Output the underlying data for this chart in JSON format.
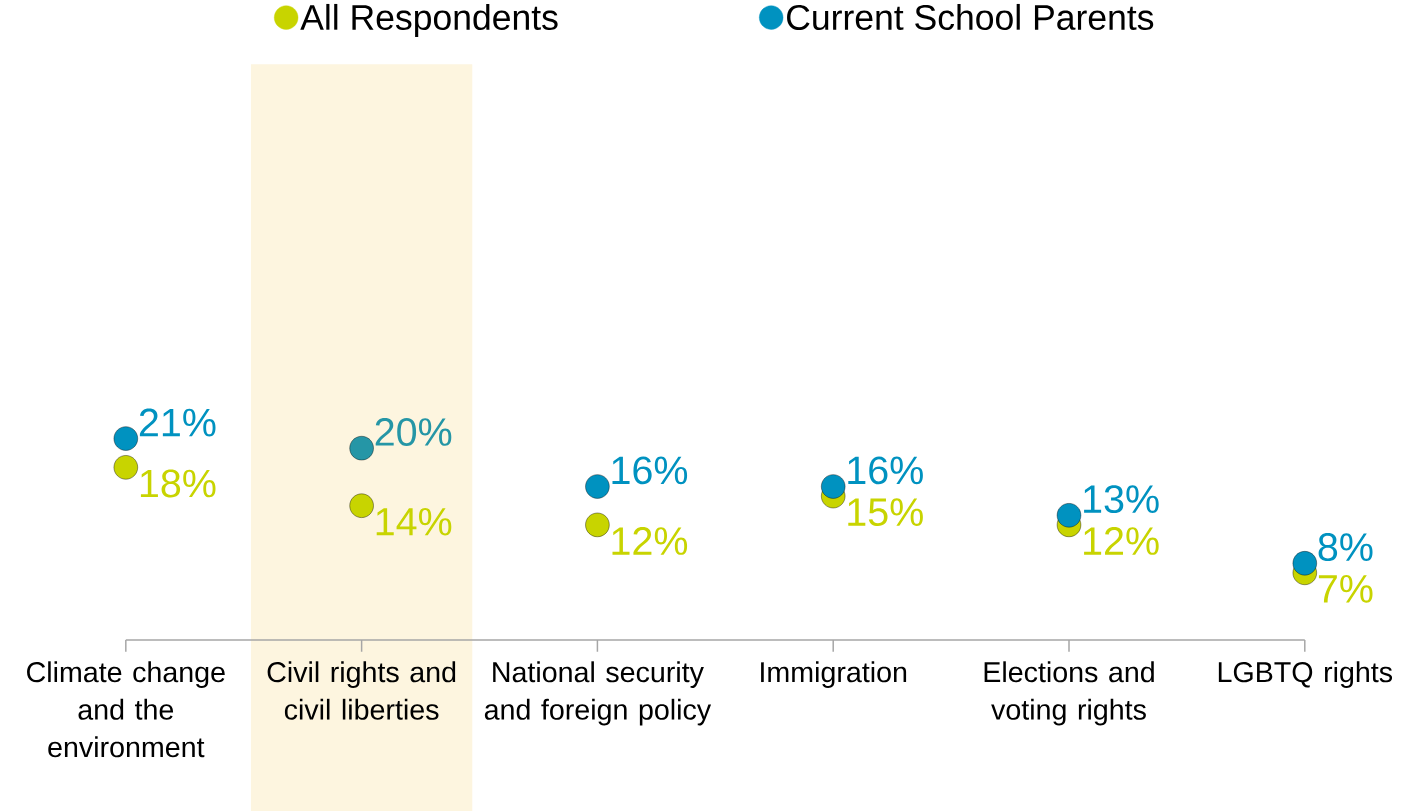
{
  "chart_data": {
    "type": "scatter",
    "categories": [
      "Climate change and the environment",
      "Civil rights and civil liberties",
      "National security and foreign policy",
      "Immigration",
      "Elections and voting rights",
      "LGBTQ rights"
    ],
    "series": [
      {
        "name": "All Respondents",
        "color": "#c8d400",
        "values": [
          18,
          14,
          12,
          15,
          12,
          7
        ],
        "value_labels": [
          "18%",
          "14%",
          "12%",
          "15%",
          "12%",
          "7%"
        ]
      },
      {
        "name": "Current School Parents",
        "color": "#0092c0",
        "colors": [
          "#0092c0",
          "#2596a6",
          "#0092c0",
          "#0092c0",
          "#0092c0",
          "#0092c0"
        ],
        "values": [
          21,
          20,
          16,
          16,
          13,
          8
        ],
        "value_labels": [
          "21%",
          "20%",
          "16%",
          "16%",
          "13%",
          "8%"
        ]
      }
    ],
    "bands": [
      {
        "axis": "x",
        "from": "Civil rights and civil liberties",
        "to": "Civil rights and civil liberties",
        "color": "#fdf5df"
      }
    ],
    "marker": "circle",
    "legend": "top",
    "grid": false,
    "tick_labels": "x"
  }
}
